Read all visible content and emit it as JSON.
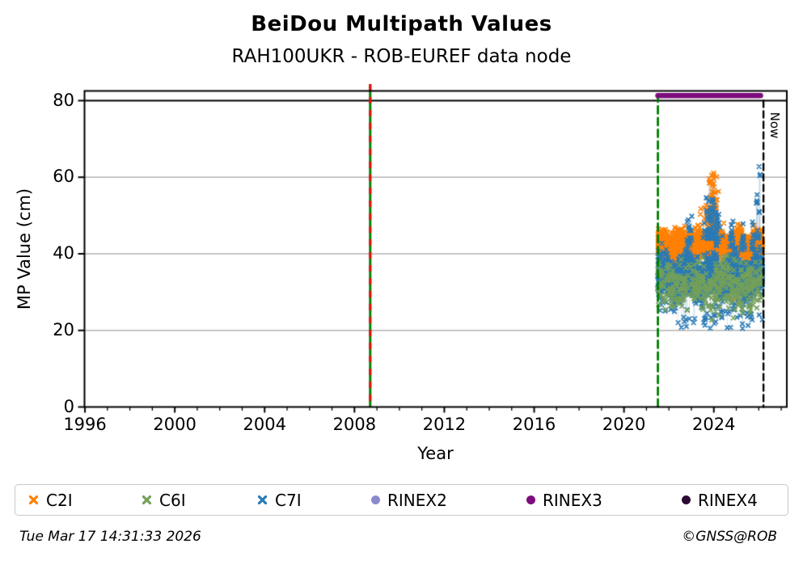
{
  "header": {
    "title": "BeiDou Multipath Values",
    "subtitle": "RAH100UKR - ROB-EUREF data node"
  },
  "footer": {
    "timestamp": "Tue Mar 17 14:31:33 2026",
    "copyright": "©GNSS@ROB"
  },
  "legend": {
    "items": [
      {
        "id": "c2i",
        "label": "C2I",
        "marker": "x",
        "color": "#ff8105"
      },
      {
        "id": "c6i",
        "label": "C6I",
        "marker": "x",
        "color": "#74a05a"
      },
      {
        "id": "c7i",
        "label": "C7I",
        "marker": "x",
        "color": "#2a7ab5"
      },
      {
        "id": "rinex2",
        "label": "RINEX2",
        "marker": "circle",
        "color": "#8a8ad0"
      },
      {
        "id": "rinex3",
        "label": "RINEX3",
        "marker": "circle",
        "color": "#7d0c7d"
      },
      {
        "id": "rinex4",
        "label": "RINEX4",
        "marker": "circle",
        "color": "#2b0a33"
      }
    ]
  },
  "chart_data": {
    "type": "scatter",
    "title": "BeiDou Multipath Values",
    "subtitle": "RAH100UKR - ROB-EUREF data node",
    "xlabel": "Year",
    "ylabel": "MP Value (cm)",
    "xlim": [
      1995.98,
      2027.25
    ],
    "ylim": [
      0,
      82.5
    ],
    "xticks": [
      1996,
      2000,
      2004,
      2008,
      2012,
      2016,
      2020,
      2024
    ],
    "yticks": [
      0,
      20,
      40,
      60,
      80
    ],
    "grid": {
      "horizontal_gray_at": [
        20,
        40,
        60
      ],
      "gray_color": "#b3b3b3",
      "black_line_at": 80,
      "vertical": false
    },
    "legend_position": "bottom",
    "annotations": {
      "receiver_change_line": {
        "x": 2008.7,
        "style": "solid green with red dashes",
        "colors": [
          "#008000",
          "#e01010"
        ]
      },
      "data_start_line": {
        "x": 2021.51,
        "style": "dashed",
        "color": "#007d00"
      },
      "now_line": {
        "x": 2026.21,
        "style": "dashed",
        "color": "#000000",
        "label": "Now"
      },
      "rinex3_period_bar": {
        "x_from": 2021.51,
        "x_to": 2026.08,
        "y": 81.3,
        "color": "#7d0c7d"
      }
    },
    "observation_period": [
      2021.51,
      2026.17
    ],
    "series": [
      {
        "name": "C2I",
        "marker": "x",
        "color": "#ff8105",
        "summary": "dense band ~38-48 cm, mean ~42; peak cluster up to ~61 cm around 2024.0; rare lows ~28-33 cm",
        "gen": {
          "seed": 11,
          "n": 1800,
          "t0": 2021.51,
          "t1": 2026.17,
          "mean": 42.0,
          "sigma": 1.7,
          "min": 37.2,
          "max": 99,
          "wave_amp": 1.2,
          "wave_period": 0.85,
          "down_rate": 0.0025,
          "down_min": 28,
          "down_max": 33,
          "spikes": [
            {
              "t": 2023.82,
              "spread": 0.22,
              "vbase": 45.0,
              "vmax": 53.0,
              "n": 70
            },
            {
              "t": 2023.96,
              "spread": 0.09,
              "vbase": 48.0,
              "vmax": 61.5,
              "n": 70
            },
            {
              "t": 2022.55,
              "spread": 0.3,
              "vbase": 44.0,
              "vmax": 47.5,
              "n": 25
            },
            {
              "t": 2025.93,
              "spread": 0.08,
              "vbase": 43.5,
              "vmax": 47.5,
              "n": 10
            }
          ]
        }
      },
      {
        "name": "C6I",
        "marker": "x",
        "color": "#74a05a",
        "summary": "sparse band ~22-39 cm, mean ~32, mostly hidden under C7I",
        "gen": {
          "seed": 22,
          "n": 420,
          "t0": 2021.51,
          "t1": 2026.17,
          "mean": 31.6,
          "sigma": 3.0,
          "min": 22.0,
          "max": 39.5,
          "wave_amp": 0.8,
          "wave_period": 1.3,
          "down_rate": 0.008,
          "down_min": 21.5,
          "down_max": 25,
          "spikes": []
        }
      },
      {
        "name": "C7I",
        "marker": "x",
        "color": "#2a7ab5",
        "summary": "dense band ~28-41 cm, mean ~34; spikes to ~50-55 around 2023.9; isolated max ~64 cm near 2026.05; down-spikes to ~20 cm",
        "gen": {
          "seed": 33,
          "n": 3200,
          "t0": 2021.51,
          "t1": 2026.17,
          "mean": 33.9,
          "sigma": 2.2,
          "min": 28.0,
          "max": 99,
          "wave_amp": 1.4,
          "wave_period": 1.05,
          "down_rate": 0.02,
          "down_min": 20.5,
          "down_max": 28,
          "spikes": [
            {
              "t": 2022.9,
              "spread": 0.05,
              "vbase": 42.0,
              "vmax": 50.0,
              "n": 22
            },
            {
              "t": 2023.85,
              "spread": 0.18,
              "vbase": 44.0,
              "vmax": 55.0,
              "n": 80
            },
            {
              "t": 2024.12,
              "spread": 0.05,
              "vbase": 42.0,
              "vmax": 52.0,
              "n": 20
            },
            {
              "t": 2024.8,
              "spread": 0.04,
              "vbase": 42.0,
              "vmax": 51.0,
              "n": 18
            },
            {
              "t": 2025.3,
              "spread": 0.06,
              "vbase": 41.0,
              "vmax": 48.0,
              "n": 14
            },
            {
              "t": 2025.72,
              "spread": 0.04,
              "vbase": 41.0,
              "vmax": 49.0,
              "n": 12
            },
            {
              "t": 2025.95,
              "spread": 0.05,
              "vbase": 44.0,
              "vmax": 57.0,
              "n": 16
            },
            {
              "t": 2026.05,
              "spread": 0.02,
              "vbase": 55.0,
              "vmax": 64.3,
              "n": 3
            }
          ]
        }
      },
      {
        "name": "RINEX2",
        "marker": "circle",
        "color": "#8a8ad0",
        "points": []
      },
      {
        "name": "RINEX3",
        "marker": "circle",
        "color": "#7d0c7d",
        "bar": {
          "x_from": 2021.51,
          "x_to": 2026.08,
          "y": 81.3
        }
      },
      {
        "name": "RINEX4",
        "marker": "circle",
        "color": "#2b0a33",
        "points": []
      }
    ]
  }
}
